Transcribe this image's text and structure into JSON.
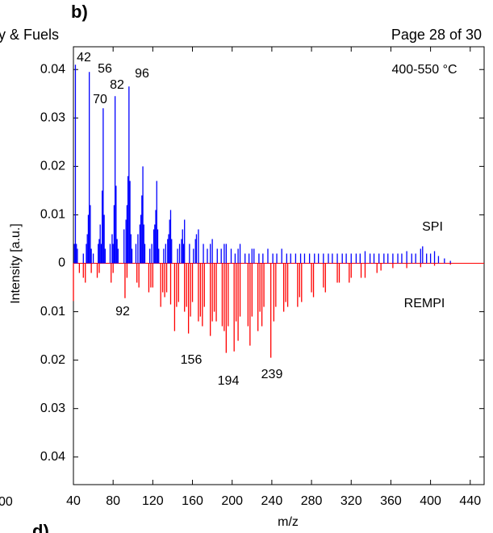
{
  "header": {
    "panel": "b)",
    "journal": "y & Fuels",
    "page": "Page 28 of 30",
    "left_fragment": "00",
    "next_panel": "d)"
  },
  "chart_data": {
    "type": "mirror-stick",
    "xlabel": "m/z",
    "ylabel": "Intensity [a.u.]",
    "xlim": [
      40,
      454
    ],
    "xticks": [
      40,
      80,
      120,
      160,
      200,
      240,
      280,
      320,
      360,
      400,
      440
    ],
    "ylim": [
      -0.0457,
      0.0447
    ],
    "yticks": [
      {
        "value": -0.04,
        "label": "0.04"
      },
      {
        "value": -0.03,
        "label": "0.03"
      },
      {
        "value": -0.02,
        "label": "0.02"
      },
      {
        "value": -0.01,
        "label": "0.01"
      },
      0,
      0.01,
      0.02,
      0.03,
      0.04
    ],
    "annotations": [
      "400-550 °C",
      "42",
      "56",
      "70",
      "82",
      "96",
      "92",
      "156",
      "194",
      "239"
    ],
    "series": [
      {
        "name": "SPI",
        "color": "#0000ff",
        "x": [
          41,
          42,
          43,
          44,
          50,
          53,
          54,
          55,
          56,
          57,
          58,
          60,
          65,
          66,
          67,
          68,
          69,
          70,
          71,
          72,
          77,
          79,
          80,
          81,
          82,
          83,
          84,
          85,
          91,
          93,
          94,
          95,
          96,
          97,
          98,
          99,
          103,
          105,
          107,
          108,
          109,
          110,
          111,
          112,
          117,
          119,
          121,
          122,
          123,
          124,
          125,
          126,
          131,
          133,
          135,
          136,
          137,
          138,
          139,
          145,
          147,
          149,
          150,
          151,
          152,
          157,
          161,
          163,
          164,
          166,
          171,
          175,
          178,
          180,
          185,
          189,
          192,
          194,
          199,
          203,
          206,
          208,
          213,
          217,
          220,
          222,
          227,
          231,
          236,
          241,
          245,
          250,
          255,
          259,
          264,
          269,
          273,
          278,
          283,
          287,
          292,
          297,
          301,
          306,
          311,
          315,
          320,
          325,
          329,
          334,
          339,
          343,
          348,
          353,
          357,
          362,
          367,
          371,
          376,
          381,
          385,
          390,
          392,
          396,
          400,
          404,
          408,
          414,
          420
        ],
        "values": [
          0.004,
          0.041,
          0.004,
          0.003,
          0.002,
          0.004,
          0.006,
          0.01,
          0.0395,
          0.012,
          0.003,
          0.002,
          0.004,
          0.005,
          0.008,
          0.004,
          0.015,
          0.032,
          0.01,
          0.003,
          0.004,
          0.006,
          0.004,
          0.012,
          0.0345,
          0.016,
          0.005,
          0.003,
          0.007,
          0.009,
          0.012,
          0.018,
          0.0365,
          0.017,
          0.006,
          0.003,
          0.004,
          0.006,
          0.008,
          0.01,
          0.014,
          0.02,
          0.008,
          0.004,
          0.003,
          0.004,
          0.007,
          0.008,
          0.011,
          0.017,
          0.007,
          0.003,
          0.003,
          0.004,
          0.005,
          0.006,
          0.009,
          0.011,
          0.005,
          0.003,
          0.004,
          0.005,
          0.007,
          0.004,
          0.009,
          0.004,
          0.003,
          0.005,
          0.006,
          0.007,
          0.004,
          0.003,
          0.004,
          0.005,
          0.003,
          0.003,
          0.004,
          0.004,
          0.003,
          0.002,
          0.003,
          0.004,
          0.002,
          0.002,
          0.003,
          0.003,
          0.002,
          0.002,
          0.003,
          0.002,
          0.002,
          0.003,
          0.002,
          0.002,
          0.002,
          0.002,
          0.002,
          0.002,
          0.002,
          0.002,
          0.002,
          0.002,
          0.002,
          0.002,
          0.002,
          0.002,
          0.002,
          0.002,
          0.002,
          0.0025,
          0.002,
          0.002,
          0.002,
          0.002,
          0.002,
          0.002,
          0.002,
          0.002,
          0.0025,
          0.002,
          0.002,
          0.003,
          0.0035,
          0.002,
          0.002,
          0.0025,
          0.0015,
          0.001,
          0.0005
        ]
      },
      {
        "name": "REMPI",
        "color": "#ff0000",
        "x": [
          40,
          46,
          50,
          52,
          58,
          64,
          66,
          78,
          80,
          92,
          94,
          104,
          106,
          116,
          118,
          120,
          128,
          130,
          132,
          134,
          138,
          142,
          144,
          146,
          152,
          154,
          156,
          158,
          160,
          166,
          168,
          170,
          172,
          178,
          180,
          182,
          184,
          190,
          192,
          194,
          196,
          202,
          204,
          206,
          208,
          216,
          218,
          220,
          226,
          228,
          230,
          232,
          239,
          242,
          244,
          252,
          254,
          256,
          266,
          268,
          270,
          280,
          282,
          292,
          294,
          306,
          308,
          318,
          320,
          330,
          334,
          346,
          350,
          362,
          376,
          390,
          404,
          420
        ],
        "values": [
          -0.0078,
          -0.002,
          -0.003,
          -0.004,
          -0.002,
          -0.003,
          -0.002,
          -0.004,
          -0.002,
          -0.0072,
          -0.003,
          -0.004,
          -0.005,
          -0.006,
          -0.005,
          -0.005,
          -0.009,
          -0.006,
          -0.007,
          -0.006,
          -0.0085,
          -0.014,
          -0.009,
          -0.008,
          -0.01,
          -0.009,
          -0.0145,
          -0.011,
          -0.008,
          -0.012,
          -0.011,
          -0.013,
          -0.009,
          -0.015,
          -0.012,
          -0.01,
          -0.012,
          -0.013,
          -0.014,
          -0.0185,
          -0.013,
          -0.0182,
          -0.012,
          -0.016,
          -0.011,
          -0.013,
          -0.017,
          -0.011,
          -0.014,
          -0.01,
          -0.013,
          -0.009,
          -0.0195,
          -0.012,
          -0.009,
          -0.01,
          -0.008,
          -0.009,
          -0.009,
          -0.007,
          -0.008,
          -0.006,
          -0.007,
          -0.005,
          -0.006,
          -0.004,
          -0.004,
          -0.004,
          -0.003,
          -0.003,
          -0.003,
          -0.002,
          -0.0015,
          -0.001,
          -0.001,
          -0.0008,
          -0.0005,
          -0.0003
        ]
      }
    ]
  }
}
